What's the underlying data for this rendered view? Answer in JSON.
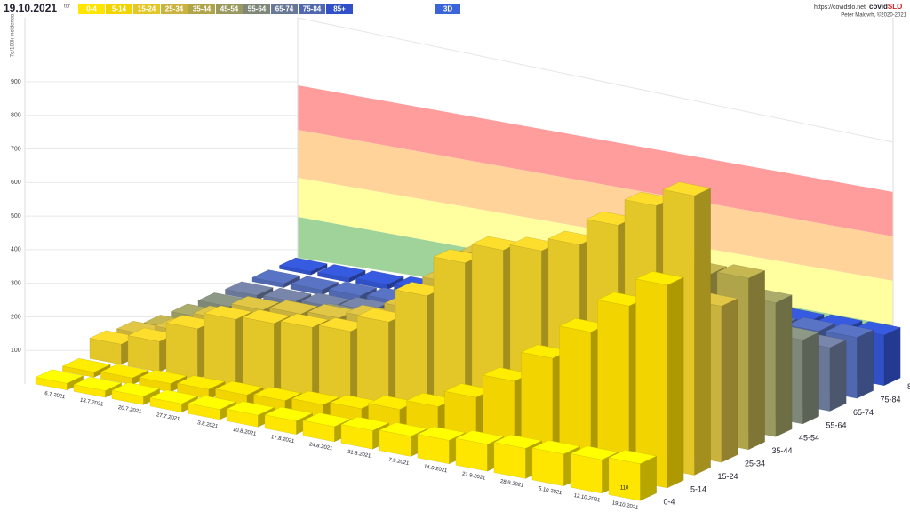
{
  "header": {
    "url": "https://covidslo.net",
    "brand": [
      "covid",
      "SLO"
    ],
    "author": "Peter Malovrh, ©2020-2021",
    "view_button": "3D"
  },
  "chart_data": {
    "type": "bar3d",
    "title": "19.10.2021",
    "subtitle": "tor",
    "y_label": "7d/100k incidenca",
    "categories": [
      "6.7.2021",
      "13.7.2021",
      "20.7.2021",
      "27.7.2021",
      "3.8.2021",
      "10.8.2021",
      "17.8.2021",
      "24.8.2021",
      "31.8.2021",
      "7.9.2021",
      "14.9.2021",
      "21.9.2021",
      "28.9.2021",
      "5.10.2021",
      "12.10.2021",
      "19.10.2021"
    ],
    "ylim": [
      0,
      900
    ],
    "yticks": [
      100,
      200,
      300,
      400,
      500,
      600,
      700,
      800,
      900
    ],
    "grid": true,
    "series": [
      {
        "name": "0-4",
        "color": "#ffe600",
        "values": [
          20,
          20,
          25,
          25,
          30,
          35,
          40,
          45,
          55,
          60,
          70,
          80,
          90,
          95,
          100,
          110
        ]
      },
      {
        "name": "5-14",
        "color": "#f2d400",
        "values": [
          15,
          20,
          25,
          30,
          35,
          40,
          50,
          60,
          80,
          110,
          160,
          230,
          320,
          420,
          520,
          604
        ]
      },
      {
        "name": "15-24",
        "color": "#e3c628",
        "values": [
          60,
          90,
          150,
          200,
          210,
          220,
          230,
          280,
          380,
          500,
          560,
          580,
          620,
          700,
          780,
          832
        ]
      },
      {
        "name": "25-34",
        "color": "#c9b23e",
        "values": [
          50,
          80,
          140,
          190,
          200,
          210,
          230,
          280,
          380,
          480,
          450,
          430,
          420,
          440,
          455,
          465
        ]
      },
      {
        "name": "35-44",
        "color": "#b0a44a",
        "values": [
          30,
          45,
          80,
          110,
          120,
          130,
          150,
          190,
          260,
          350,
          380,
          400,
          430,
          470,
          500,
          510
        ]
      },
      {
        "name": "45-54",
        "color": "#999960",
        "values": [
          25,
          35,
          60,
          80,
          90,
          100,
          120,
          150,
          200,
          280,
          320,
          330,
          350,
          370,
          385,
          399
        ]
      },
      {
        "name": "55-64",
        "color": "#7f8878",
        "values": [
          20,
          25,
          40,
          55,
          60,
          70,
          85,
          110,
          150,
          200,
          230,
          240,
          245,
          248,
          250,
          250
        ]
      },
      {
        "name": "65-74",
        "color": "#6a7898",
        "values": [
          15,
          18,
          25,
          35,
          40,
          45,
          55,
          70,
          100,
          140,
          160,
          170,
          175,
          180,
          185,
          189
        ]
      },
      {
        "name": "75-84",
        "color": "#5068b0",
        "values": [
          12,
          15,
          20,
          25,
          30,
          35,
          45,
          60,
          85,
          120,
          140,
          150,
          160,
          170,
          178,
          181
        ]
      },
      {
        "name": "85+",
        "color": "#3050c8",
        "values": [
          10,
          12,
          15,
          20,
          25,
          30,
          40,
          55,
          75,
          100,
          120,
          130,
          140,
          145,
          148,
          150
        ]
      }
    ]
  }
}
